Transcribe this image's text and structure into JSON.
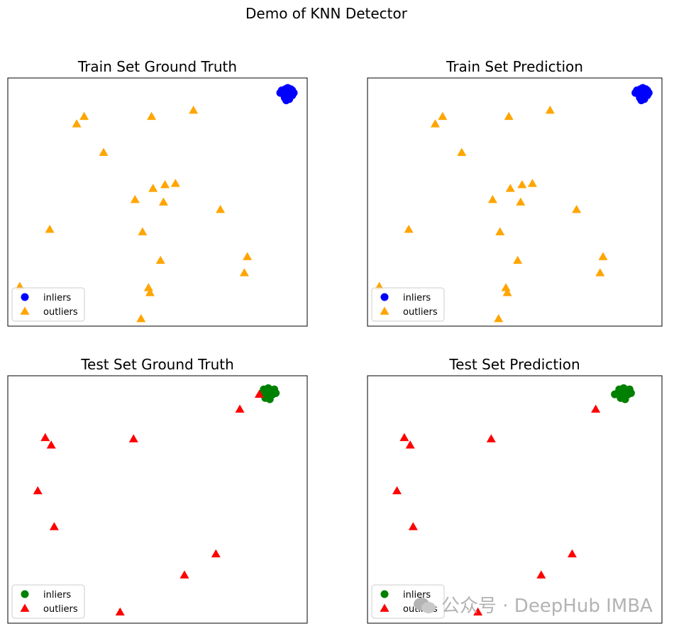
{
  "figure_title": "Demo of KNN Detector",
  "watermark": "公众号 · DeepHub IMBA",
  "colors": {
    "train_inlier": "#0000ff",
    "train_outlier": "#ffa500",
    "test_inlier": "#008000",
    "test_outlier": "#ff0000",
    "frame": "#000000"
  },
  "chart_data": [
    {
      "type": "scatter",
      "title": "Train Set Ground Truth",
      "xlim": [
        0,
        100
      ],
      "ylim": [
        0,
        100
      ],
      "xticks": false,
      "yticks": false,
      "legend_position": "lower-left",
      "series": [
        {
          "name": "inliers",
          "marker": "circle",
          "color": "#0000ff",
          "points": [
            [
              92,
              94
            ],
            [
              93,
              95
            ],
            [
              94,
              93
            ],
            [
              92.5,
              92
            ],
            [
              93.5,
              96
            ],
            [
              94.5,
              94.5
            ],
            [
              95,
              93
            ],
            [
              91.5,
              95
            ],
            [
              93,
              93
            ],
            [
              94,
              91.5
            ],
            [
              95.5,
              94
            ],
            [
              92,
              93.5
            ],
            [
              93,
              91
            ],
            [
              94.5,
              95.5
            ],
            [
              91,
              94
            ],
            [
              93.8,
              94
            ],
            [
              92.7,
              95.5
            ],
            [
              95,
              95
            ]
          ]
        },
        {
          "name": "outliers",
          "marker": "triangle",
          "color": "#ffa500",
          "points": [
            [
              25.5,
              84.5
            ],
            [
              23,
              81.5
            ],
            [
              48,
              84.5
            ],
            [
              62,
              87
            ],
            [
              32,
              70
            ],
            [
              52.5,
              57
            ],
            [
              48.5,
              55.5
            ],
            [
              56,
              57.5
            ],
            [
              42.5,
              51
            ],
            [
              52,
              50
            ],
            [
              71,
              47
            ],
            [
              14,
              39
            ],
            [
              45,
              38
            ],
            [
              80,
              28
            ],
            [
              51,
              26.5
            ],
            [
              79,
              21.5
            ],
            [
              4,
              16
            ],
            [
              47,
              15.5
            ],
            [
              47.5,
              13.5
            ],
            [
              44.5,
              3
            ]
          ]
        }
      ]
    },
    {
      "type": "scatter",
      "title": "Train Set Prediction",
      "xlim": [
        0,
        100
      ],
      "ylim": [
        0,
        100
      ],
      "xticks": false,
      "yticks": false,
      "legend_position": "lower-left",
      "series": [
        {
          "name": "inliers",
          "marker": "circle",
          "color": "#0000ff",
          "points": [
            [
              92,
              94
            ],
            [
              93,
              95
            ],
            [
              94,
              93
            ],
            [
              92.5,
              92
            ],
            [
              93.5,
              96
            ],
            [
              94.5,
              94.5
            ],
            [
              95,
              93
            ],
            [
              91.5,
              95
            ],
            [
              93,
              93
            ],
            [
              94,
              91.5
            ],
            [
              95.5,
              94
            ],
            [
              92,
              93.5
            ],
            [
              93,
              91
            ],
            [
              94.5,
              95.5
            ],
            [
              91,
              94
            ],
            [
              93.8,
              94
            ],
            [
              92.7,
              95.5
            ],
            [
              95,
              95
            ]
          ]
        },
        {
          "name": "outliers",
          "marker": "triangle",
          "color": "#ffa500",
          "points": [
            [
              25.5,
              84.5
            ],
            [
              23,
              81.5
            ],
            [
              48,
              84.5
            ],
            [
              62,
              87
            ],
            [
              32,
              70
            ],
            [
              52.5,
              57
            ],
            [
              48.5,
              55.5
            ],
            [
              56,
              57.5
            ],
            [
              42.5,
              51
            ],
            [
              52,
              50
            ],
            [
              71,
              47
            ],
            [
              14,
              39
            ],
            [
              45,
              38
            ],
            [
              80,
              28
            ],
            [
              51,
              26.5
            ],
            [
              79,
              21.5
            ],
            [
              4,
              16
            ],
            [
              47,
              15.5
            ],
            [
              47.5,
              13.5
            ],
            [
              44.5,
              3
            ]
          ]
        }
      ]
    },
    {
      "type": "scatter",
      "title": "Test Set Ground Truth",
      "xlim": [
        0,
        100
      ],
      "ylim": [
        0,
        100
      ],
      "xticks": false,
      "yticks": false,
      "legend_position": "lower-left",
      "series": [
        {
          "name": "inliers",
          "marker": "circle",
          "color": "#008000",
          "points": [
            [
              85,
              93
            ],
            [
              86.5,
              94
            ],
            [
              88,
              93.5
            ],
            [
              86,
              91
            ],
            [
              87.5,
              92
            ],
            [
              89,
              94.5
            ],
            [
              85.5,
              94.5
            ],
            [
              87,
              95
            ],
            [
              88.5,
              92.5
            ],
            [
              86,
              92.5
            ],
            [
              89.5,
              93
            ],
            [
              87.5,
              90.5
            ]
          ]
        },
        {
          "name": "outliers",
          "marker": "triangle",
          "color": "#ff0000",
          "points": [
            [
              84,
              92.5
            ],
            [
              77.5,
              86.5
            ],
            [
              12.5,
              75
            ],
            [
              14.5,
              72
            ],
            [
              42,
              74.5
            ],
            [
              10,
              53.5
            ],
            [
              15.5,
              39
            ],
            [
              69.5,
              28
            ],
            [
              59,
              19.5
            ],
            [
              37.5,
              4.5
            ]
          ]
        }
      ]
    },
    {
      "type": "scatter",
      "title": "Test Set Prediction",
      "xlim": [
        0,
        100
      ],
      "ylim": [
        0,
        100
      ],
      "xticks": false,
      "yticks": false,
      "legend_position": "lower-left",
      "series": [
        {
          "name": "inliers",
          "marker": "circle",
          "color": "#008000",
          "points": [
            [
              85,
              93
            ],
            [
              86.5,
              94
            ],
            [
              88,
              93.5
            ],
            [
              86,
              91
            ],
            [
              87.5,
              92
            ],
            [
              89,
              94.5
            ],
            [
              85.5,
              94.5
            ],
            [
              87,
              95
            ],
            [
              88.5,
              92.5
            ],
            [
              86,
              92.5
            ],
            [
              89.5,
              93
            ],
            [
              87.5,
              90.5
            ],
            [
              84,
              92.5
            ]
          ]
        },
        {
          "name": "outliers",
          "marker": "triangle",
          "color": "#ff0000",
          "points": [
            [
              77.5,
              86.5
            ],
            [
              12.5,
              75
            ],
            [
              14.5,
              72
            ],
            [
              42,
              74.5
            ],
            [
              10,
              53.5
            ],
            [
              15.5,
              39
            ],
            [
              69.5,
              28
            ],
            [
              59,
              19.5
            ],
            [
              37.5,
              4.5
            ]
          ]
        }
      ]
    }
  ]
}
